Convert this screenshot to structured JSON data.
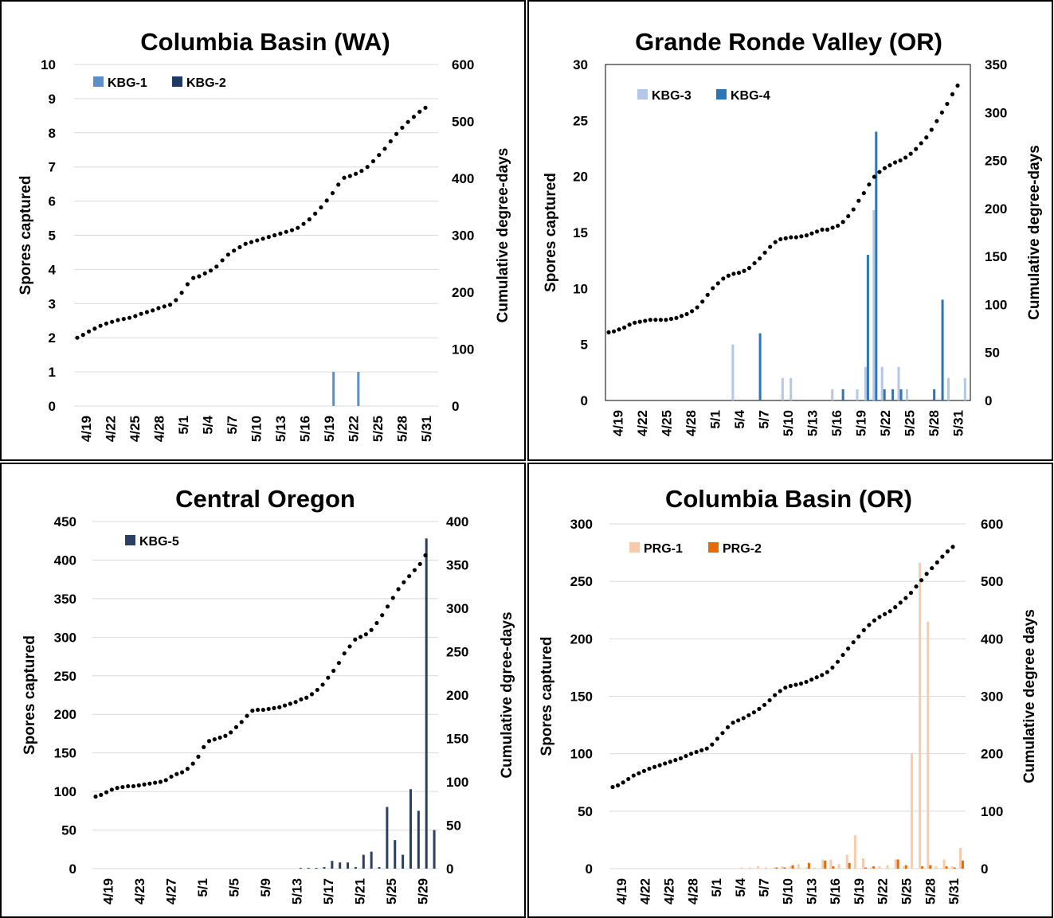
{
  "chart_data": [
    {
      "type": "bar",
      "title": "Columbia Basin (WA)",
      "ylabel": "Spores captured",
      "y2label": "Cumulative degree-days",
      "ylim": [
        0,
        10
      ],
      "y2lim": [
        0,
        600
      ],
      "yticks": [
        "0",
        "1",
        "2",
        "3",
        "4",
        "5",
        "6",
        "7",
        "8",
        "9",
        "10"
      ],
      "y2ticks": [
        "0",
        "100",
        "200",
        "300",
        "400",
        "500",
        "600"
      ],
      "xticks": [
        "4/19",
        "4/22",
        "4/25",
        "4/28",
        "5/1",
        "5/4",
        "5/7",
        "5/10",
        "5/13",
        "5/16",
        "5/19",
        "5/22",
        "5/25",
        "5/28",
        "5/31"
      ],
      "start_label": "4/19",
      "num_days": 44,
      "grid": true,
      "plot_border": false,
      "legend_position": "top-left",
      "series": [
        {
          "name": "KBG-1",
          "color": "#5b8fc8",
          "days": [
            31,
            34
          ],
          "values": [
            1,
            1
          ]
        },
        {
          "name": "KBG-2",
          "color": "#1f3864",
          "days": [],
          "values": []
        }
      ],
      "dd_values": [
        120,
        125,
        131,
        136,
        141,
        145,
        148,
        151,
        153,
        155,
        158,
        162,
        165,
        168,
        172,
        175,
        178,
        186,
        199,
        214,
        225,
        228,
        233,
        238,
        245,
        256,
        266,
        273,
        279,
        285,
        288,
        291,
        294,
        297,
        300,
        303,
        306,
        309,
        313,
        320,
        328,
        338,
        349,
        361,
        374,
        389,
        401,
        404,
        408,
        413,
        420,
        430,
        441,
        452,
        465,
        478,
        489,
        499,
        508,
        517,
        524
      ]
    },
    {
      "type": "bar",
      "title": "Grande Ronde Valley (OR)",
      "ylabel": "Spores captured",
      "y2label": "Cumulative degree-days",
      "ylim": [
        0,
        30
      ],
      "y2lim": [
        0,
        350
      ],
      "yticks": [
        "0",
        "5",
        "10",
        "15",
        "20",
        "25",
        "30"
      ],
      "y2ticks": [
        "0",
        "50",
        "100",
        "150",
        "200",
        "250",
        "300",
        "350"
      ],
      "xticks": [
        "4/19",
        "4/22",
        "4/25",
        "4/28",
        "5/1",
        "5/4",
        "5/7",
        "5/10",
        "5/13",
        "5/16",
        "5/19",
        "5/22",
        "5/25",
        "5/28",
        "5/31"
      ],
      "num_days": 44,
      "grid": false,
      "plot_border": true,
      "legend_position": "top-left",
      "series": [
        {
          "name": "KBG-3",
          "color": "#b4c7e7",
          "days": [
            15,
            21,
            22,
            27,
            30,
            31,
            32,
            33,
            35,
            36,
            41,
            43
          ],
          "values": [
            5,
            2,
            2,
            1,
            1,
            3,
            17,
            3,
            3,
            1,
            2,
            2
          ]
        },
        {
          "name": "KBG-4",
          "color": "#2e75b6",
          "days": [
            18,
            28,
            31,
            32,
            33,
            34,
            35,
            39,
            40
          ],
          "values": [
            6,
            1,
            13,
            24,
            1,
            1,
            1,
            1,
            9
          ]
        }
      ],
      "dd_values": [
        71,
        72,
        74,
        76,
        79,
        81,
        82,
        83,
        84,
        84,
        84,
        84,
        85,
        86,
        88,
        90,
        93,
        97,
        103,
        110,
        117,
        122,
        127,
        130,
        132,
        133,
        135,
        138,
        143,
        148,
        154,
        160,
        165,
        168,
        169,
        170,
        170,
        171,
        172,
        174,
        176,
        178,
        178,
        180,
        182,
        186,
        192,
        199,
        208,
        216,
        225,
        233,
        238,
        242,
        245,
        248,
        250,
        253,
        257,
        262,
        268,
        274,
        282,
        291,
        300,
        309,
        319,
        328
      ]
    },
    {
      "type": "bar",
      "title": "Central Oregon",
      "ylabel": "Spores captured",
      "y2label": "Cumulative dgree-days",
      "ylim": [
        0,
        450
      ],
      "y2lim": [
        0,
        400
      ],
      "yticks": [
        "0",
        "50",
        "100",
        "150",
        "200",
        "250",
        "300",
        "350",
        "400",
        "450"
      ],
      "y2ticks": [
        "0",
        "50",
        "100",
        "150",
        "200",
        "250",
        "300",
        "350",
        "400"
      ],
      "xticks": [
        "4/19",
        "4/23",
        "4/27",
        "5/1",
        "5/5",
        "5/9",
        "5/13",
        "5/17",
        "5/21",
        "5/25",
        "5/29"
      ],
      "num_days": 44,
      "grid": true,
      "plot_border": false,
      "legend_position": "top-left",
      "series": [
        {
          "name": "KBG-5",
          "color": "#2c3e61",
          "days": [
            26,
            27,
            28,
            29,
            30,
            31,
            32,
            33,
            34,
            35,
            36,
            37,
            38,
            39,
            40,
            41,
            42,
            43
          ],
          "values": [
            1,
            1,
            1,
            2,
            10,
            8,
            8,
            2,
            18,
            22,
            2,
            80,
            37,
            18,
            103,
            75,
            428,
            50
          ]
        }
      ],
      "dd_values": [
        83,
        85,
        88,
        91,
        93,
        94,
        95,
        95,
        96,
        97,
        98,
        99,
        100,
        102,
        106,
        109,
        111,
        115,
        121,
        129,
        140,
        147,
        149,
        151,
        153,
        157,
        163,
        169,
        176,
        182,
        183,
        183,
        184,
        185,
        186,
        188,
        190,
        192,
        195,
        197,
        201,
        206,
        212,
        220,
        228,
        237,
        248,
        256,
        264,
        267,
        270,
        275,
        283,
        292,
        302,
        312,
        322,
        330,
        337,
        344,
        351,
        361
      ]
    },
    {
      "type": "bar",
      "title": "Columbia Basin (OR)",
      "ylabel": "Spores captured",
      "y2label": "Cumulative degree days",
      "ylim": [
        0,
        300
      ],
      "y2lim": [
        0,
        600
      ],
      "yticks": [
        "0",
        "50",
        "100",
        "150",
        "200",
        "250",
        "300"
      ],
      "y2ticks": [
        "0",
        "100",
        "200",
        "300",
        "400",
        "500",
        "600"
      ],
      "xticks": [
        "4/19",
        "4/22",
        "4/25",
        "4/28",
        "5/1",
        "5/4",
        "5/7",
        "5/10",
        "5/13",
        "5/16",
        "5/19",
        "5/22",
        "5/25",
        "5/28",
        "5/31"
      ],
      "num_days": 44,
      "grid": true,
      "plot_border": false,
      "legend_position": "top-left",
      "series": [
        {
          "name": "PRG-1",
          "color": "#f8cbad",
          "days": [
            16,
            17,
            18,
            19,
            20,
            21,
            22,
            23,
            24,
            25,
            26,
            27,
            28,
            29,
            30,
            31,
            32,
            33,
            34,
            35,
            36,
            37,
            38,
            39,
            40,
            41,
            42,
            43
          ],
          "values": [
            1,
            1,
            2,
            1,
            1,
            2,
            2,
            4,
            1,
            1,
            8,
            8,
            4,
            12,
            29,
            9,
            1,
            2,
            3,
            8,
            2,
            100,
            266,
            215,
            2,
            8,
            2,
            18
          ]
        },
        {
          "name": "PRG-2",
          "color": "#e36c0a",
          "days": [
            20,
            21,
            22,
            24,
            26,
            27,
            29,
            31,
            32,
            35,
            36,
            38,
            39,
            41,
            42,
            43
          ],
          "values": [
            1,
            1,
            3,
            5,
            7,
            2,
            5,
            1,
            2,
            8,
            3,
            2,
            3,
            2,
            1,
            7
          ]
        }
      ],
      "dd_values": [
        142,
        145,
        150,
        156,
        162,
        166,
        170,
        174,
        177,
        180,
        183,
        186,
        189,
        192,
        196,
        200,
        203,
        206,
        209,
        216,
        226,
        236,
        246,
        254,
        258,
        262,
        267,
        272,
        278,
        285,
        293,
        302,
        309,
        315,
        318,
        320,
        322,
        325,
        329,
        333,
        337,
        342,
        350,
        360,
        372,
        383,
        394,
        404,
        415,
        424,
        432,
        438,
        443,
        448,
        455,
        463,
        471,
        480,
        491,
        502,
        513,
        523,
        533,
        543,
        552,
        560
      ]
    }
  ]
}
